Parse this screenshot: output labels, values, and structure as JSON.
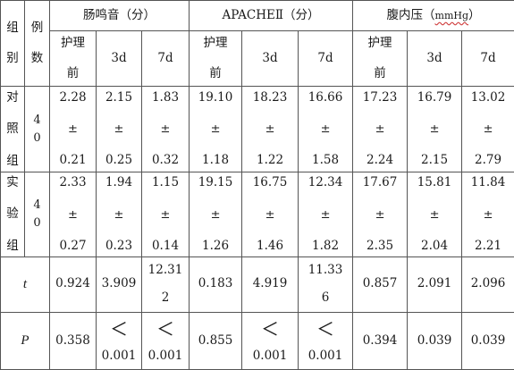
{
  "headers": {
    "group": [
      "组",
      "别"
    ],
    "cases": [
      "例",
      "数"
    ],
    "bowel_sounds": "肠鸣音（分）",
    "apache": "APACHEⅡ（分）",
    "iap_prefix": "腹内压（",
    "iap_unit": "mmHg",
    "iap_suffix": "）",
    "before_care": [
      "护理",
      "前"
    ],
    "day3": "3d",
    "day7": "7d"
  },
  "pm_symbol": "±",
  "lt_symbol": "＜",
  "rows": [
    {
      "group": [
        "对",
        "照",
        "组"
      ],
      "cases": [
        "4",
        "0"
      ],
      "values": [
        {
          "mean": "2.28",
          "sd": "0.21"
        },
        {
          "mean": "2.15",
          "sd": "0.25"
        },
        {
          "mean": "1.83",
          "sd": "0.32"
        },
        {
          "mean": "19.10",
          "sd": "1.18"
        },
        {
          "mean": "18.23",
          "sd": "1.22"
        },
        {
          "mean": "16.66",
          "sd": "1.58"
        },
        {
          "mean": "17.23",
          "sd": "2.24"
        },
        {
          "mean": "16.79",
          "sd": "2.15"
        },
        {
          "mean": "13.02",
          "sd": "2.79"
        }
      ]
    },
    {
      "group": [
        "实",
        "验",
        "组"
      ],
      "cases": [
        "4",
        "0"
      ],
      "values": [
        {
          "mean": "2.33",
          "sd": "0.27"
        },
        {
          "mean": "1.94",
          "sd": "0.23"
        },
        {
          "mean": "1.15",
          "sd": "0.14"
        },
        {
          "mean": "19.15",
          "sd": "1.26"
        },
        {
          "mean": "16.75",
          "sd": "1.46"
        },
        {
          "mean": "12.34",
          "sd": "1.82"
        },
        {
          "mean": "17.67",
          "sd": "2.35"
        },
        {
          "mean": "15.81",
          "sd": "2.04"
        },
        {
          "mean": "11.84",
          "sd": "2.21"
        }
      ]
    }
  ],
  "t_row": {
    "label": "t",
    "values": [
      "0.924",
      "3.909",
      "12.312",
      "0.183",
      "4.919",
      "11.336",
      "0.857",
      "2.091",
      "2.096"
    ],
    "wrapped": {
      "c2": [
        "12.31",
        "2"
      ],
      "c5": [
        "11.33",
        "6"
      ]
    }
  },
  "p_row": {
    "label": "P",
    "values": [
      "0.358",
      "0.001",
      "0.001",
      "0.855",
      "0.001",
      "0.001",
      "0.394",
      "0.039",
      "0.039"
    ]
  }
}
